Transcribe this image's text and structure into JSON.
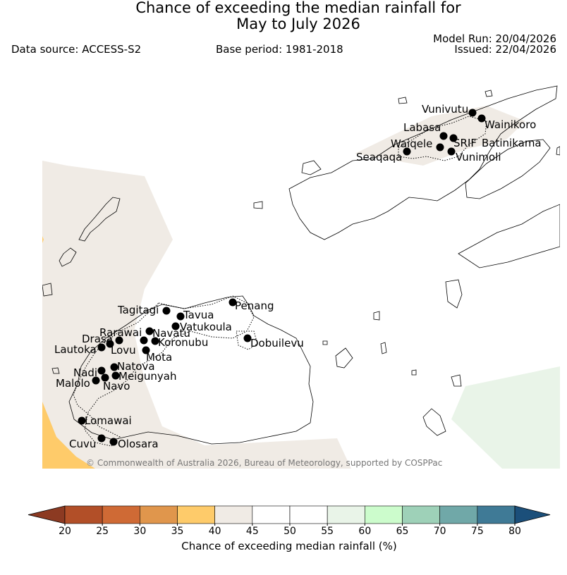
{
  "title": {
    "line1": "Chance of exceeding the median rainfall for",
    "line2": "May to July 2026"
  },
  "header": {
    "data_source": "Data source: ACCESS-S2",
    "base_period": "Base period: 1981-2018",
    "model_run": "Model Run: 20/04/2026",
    "issued": "Issued: 22/04/2026"
  },
  "copyright": "© Commonwealth of Australia 2026, Bureau of Meteorology, supported by COSPPac",
  "places": [
    {
      "name": "Vunivutu"
    },
    {
      "name": "Wainikoro"
    },
    {
      "name": "Labasa"
    },
    {
      "name": "Waiqele"
    },
    {
      "name": "SRIF"
    },
    {
      "name": "Batinikama"
    },
    {
      "name": "Seaqaqa"
    },
    {
      "name": "Vunimoli"
    },
    {
      "name": "Tagitagi"
    },
    {
      "name": "Tavua"
    },
    {
      "name": "Penang"
    },
    {
      "name": "Vatukoula"
    },
    {
      "name": "Rarawai"
    },
    {
      "name": "Navatu"
    },
    {
      "name": "Drasa"
    },
    {
      "name": "Koronubu"
    },
    {
      "name": "Lautoka"
    },
    {
      "name": "Lovu"
    },
    {
      "name": "Dobuilevu"
    },
    {
      "name": "Mota"
    },
    {
      "name": "Natova"
    },
    {
      "name": "Nadi"
    },
    {
      "name": "Meigunyah"
    },
    {
      "name": "Malolo"
    },
    {
      "name": "Navo"
    },
    {
      "name": "Lomawai"
    },
    {
      "name": "Cuvu"
    },
    {
      "name": "Olosara"
    }
  ],
  "colorbar": {
    "title": "Chance of exceeding median rainfall (%)",
    "ticks": [
      "20",
      "25",
      "30",
      "35",
      "40",
      "45",
      "50",
      "55",
      "60",
      "65",
      "70",
      "75",
      "80"
    ],
    "under_color": "#8c3a22",
    "over_color": "#1b4f7a",
    "colors": [
      "#b24f28",
      "#cf6a35",
      "#e0964c",
      "#fecb6a",
      "#f0ebe5",
      "#ffffff",
      "#ffffff",
      "#e9f4e8",
      "#ccfccc",
      "#9ed1b8",
      "#70a8a8",
      "#3f7a96"
    ]
  }
}
